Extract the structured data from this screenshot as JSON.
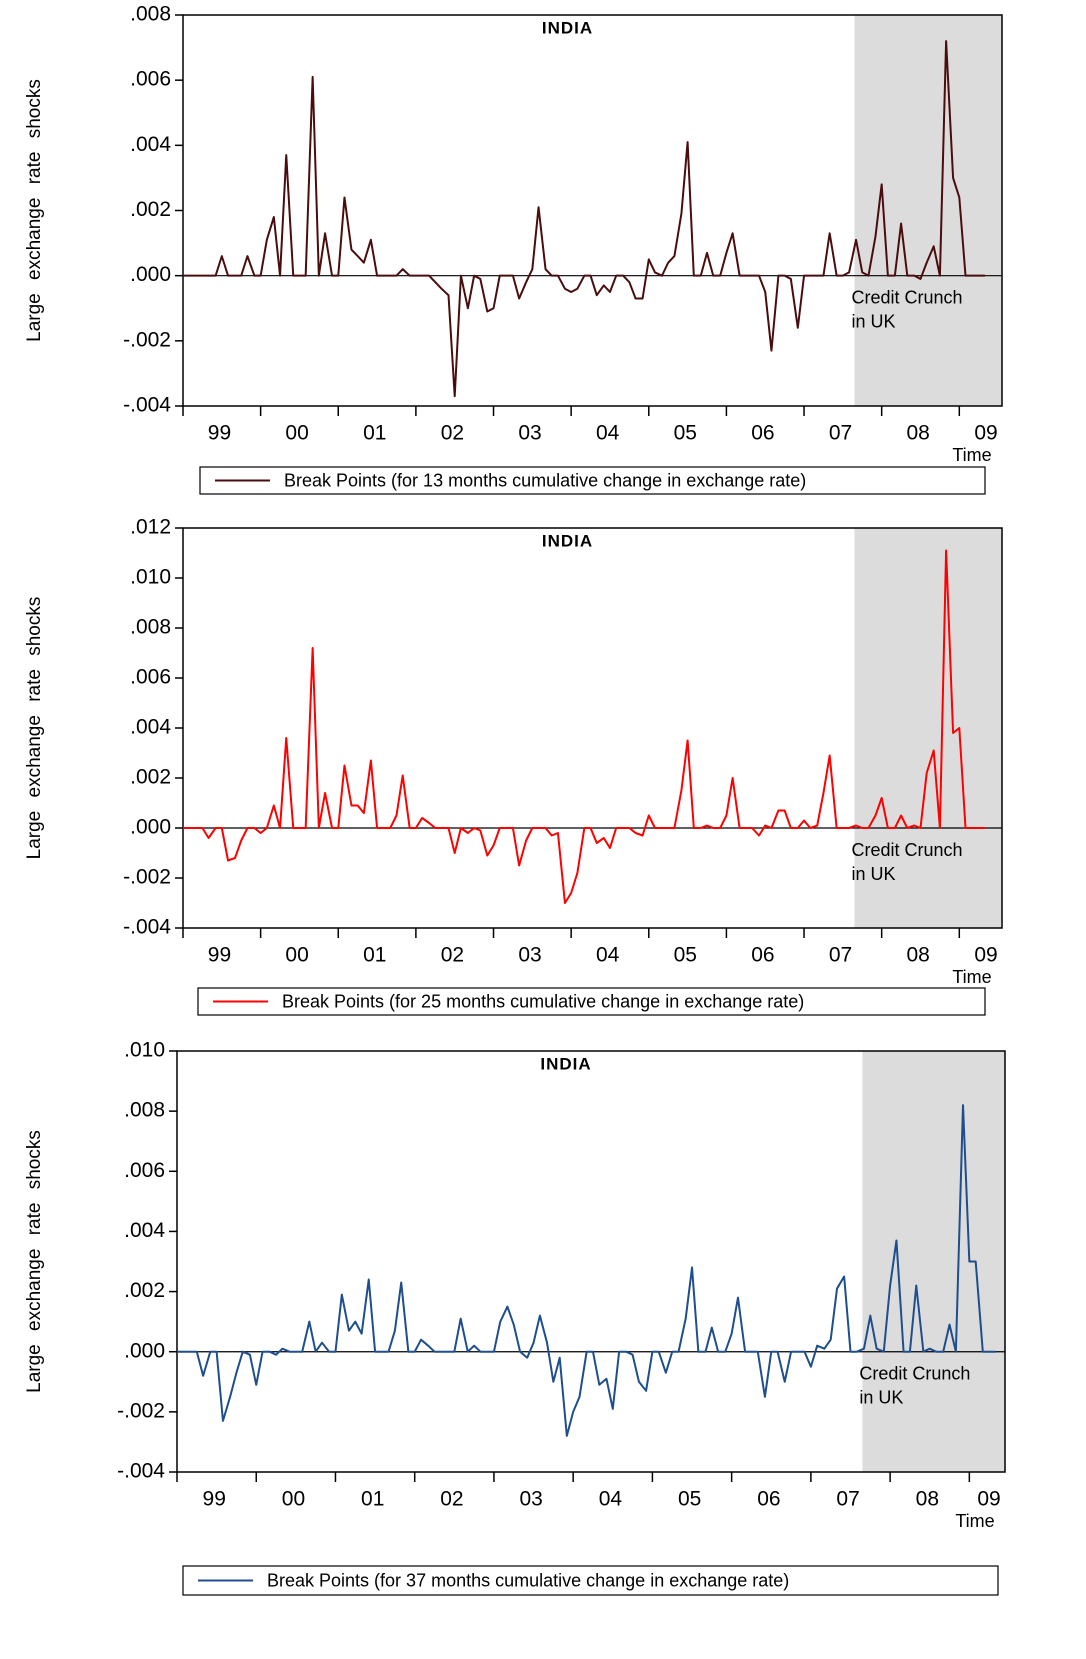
{
  "chart_data": [
    {
      "type": "line",
      "title": "INDIA",
      "y_label": "Large exchange rate shocks",
      "x_label": "Time",
      "annotation": [
        "Credit Crunch",
        "in UK"
      ],
      "shaded_xrange": [
        2007.65,
        2009.55
      ],
      "shade_color": "#dcdcdc",
      "grid": false,
      "legend": "bottom",
      "xlim": [
        1999,
        2009.55
      ],
      "ylim": [
        -0.004,
        0.008
      ],
      "xticks": [
        {
          "value": 1999,
          "label": "99"
        },
        {
          "value": 2000,
          "label": "00"
        },
        {
          "value": 2001,
          "label": "01"
        },
        {
          "value": 2002,
          "label": "02"
        },
        {
          "value": 2003,
          "label": "03"
        },
        {
          "value": 2004,
          "label": "04"
        },
        {
          "value": 2005,
          "label": "05"
        },
        {
          "value": 2006,
          "label": "06"
        },
        {
          "value": 2007,
          "label": "07"
        },
        {
          "value": 2008,
          "label": "08"
        },
        {
          "value": 2009,
          "label": "09"
        }
      ],
      "yticks": [
        {
          "value": -0.004,
          "label": "-.004"
        },
        {
          "value": -0.002,
          "label": "-.002"
        },
        {
          "value": 0,
          "label": ".000"
        },
        {
          "value": 0.002,
          "label": ".002"
        },
        {
          "value": 0.004,
          "label": ".004"
        },
        {
          "value": 0.006,
          "label": ".006"
        },
        {
          "value": 0.008,
          "label": ".008"
        }
      ],
      "x": [
        1999.0,
        1999.08,
        1999.17,
        1999.25,
        1999.33,
        1999.42,
        1999.5,
        1999.58,
        1999.67,
        1999.75,
        1999.83,
        1999.92,
        2000.0,
        2000.08,
        2000.17,
        2000.25,
        2000.33,
        2000.42,
        2000.5,
        2000.58,
        2000.67,
        2000.75,
        2000.83,
        2000.92,
        2001.0,
        2001.08,
        2001.17,
        2001.25,
        2001.33,
        2001.42,
        2001.5,
        2001.58,
        2001.67,
        2001.75,
        2001.83,
        2001.92,
        2002.0,
        2002.08,
        2002.17,
        2002.25,
        2002.33,
        2002.42,
        2002.5,
        2002.58,
        2002.67,
        2002.75,
        2002.83,
        2002.92,
        2003.0,
        2003.08,
        2003.17,
        2003.25,
        2003.33,
        2003.42,
        2003.5,
        2003.58,
        2003.67,
        2003.75,
        2003.83,
        2003.92,
        2004.0,
        2004.08,
        2004.17,
        2004.25,
        2004.33,
        2004.42,
        2004.5,
        2004.58,
        2004.67,
        2004.75,
        2004.83,
        2004.92,
        2005.0,
        2005.08,
        2005.17,
        2005.25,
        2005.33,
        2005.42,
        2005.5,
        2005.58,
        2005.67,
        2005.75,
        2005.83,
        2005.92,
        2006.0,
        2006.08,
        2006.17,
        2006.25,
        2006.33,
        2006.42,
        2006.5,
        2006.58,
        2006.67,
        2006.75,
        2006.83,
        2006.92,
        2007.0,
        2007.08,
        2007.17,
        2007.25,
        2007.33,
        2007.42,
        2007.5,
        2007.58,
        2007.67,
        2007.75,
        2007.83,
        2007.92,
        2008.0,
        2008.08,
        2008.17,
        2008.25,
        2008.33,
        2008.42,
        2008.5,
        2008.58,
        2008.67,
        2008.75,
        2008.83,
        2008.92,
        2009.0,
        2009.08,
        2009.17,
        2009.25,
        2009.33
      ],
      "series": [
        {
          "name": "Break Points (for 13 months cumulative change in exchange rate)",
          "color": "#4a0d0d",
          "values": [
            0,
            0,
            0,
            0,
            0,
            0,
            0.0006,
            0,
            0,
            0,
            0.0006,
            0,
            0,
            0.0011,
            0.0018,
            0,
            0.0037,
            0,
            0,
            0,
            0.0061,
            0,
            0.0013,
            0,
            0,
            0.0024,
            0.0008,
            0.0006,
            0.0004,
            0.0011,
            0,
            0,
            0,
            0,
            0.0002,
            0,
            0,
            0,
            0,
            -0.0002,
            -0.0004,
            -0.0006,
            -0.0037,
            0,
            -0.001,
            0,
            -0.0001,
            -0.0011,
            -0.001,
            0,
            0,
            0,
            -0.0007,
            -0.0002,
            0.0002,
            0.0021,
            0.0002,
            0,
            0,
            -0.0004,
            -0.0005,
            -0.0004,
            0,
            0,
            -0.0006,
            -0.0003,
            -0.0005,
            0,
            0,
            -0.0002,
            -0.0007,
            -0.0007,
            0.0005,
            0.0001,
            0,
            0.0004,
            0.0006,
            0.0019,
            0.0041,
            0,
            0,
            0.0007,
            0,
            0,
            0.0007,
            0.0013,
            0,
            0,
            0,
            0,
            -0.0005,
            -0.0023,
            0,
            0,
            -0.0001,
            -0.0016,
            0,
            0,
            0,
            0,
            0.0013,
            0,
            0,
            0.0001,
            0.0011,
            0.0001,
            0,
            0.0012,
            0.0028,
            0,
            0,
            0.0016,
            0,
            0,
            -0.0001,
            0.0004,
            0.0009,
            0,
            0.0072,
            0.003,
            0.0024,
            0,
            0,
            0,
            0
          ]
        }
      ]
    },
    {
      "type": "line",
      "title": "INDIA",
      "y_label": "Large exchange rate shocks",
      "x_label": "Time",
      "annotation": [
        "Credit Crunch",
        "in UK"
      ],
      "shaded_xrange": [
        2007.65,
        2009.55
      ],
      "shade_color": "#dcdcdc",
      "grid": false,
      "legend": "bottom",
      "xlim": [
        1999,
        2009.55
      ],
      "ylim": [
        -0.004,
        0.012
      ],
      "xticks": [
        {
          "value": 1999,
          "label": "99"
        },
        {
          "value": 2000,
          "label": "00"
        },
        {
          "value": 2001,
          "label": "01"
        },
        {
          "value": 2002,
          "label": "02"
        },
        {
          "value": 2003,
          "label": "03"
        },
        {
          "value": 2004,
          "label": "04"
        },
        {
          "value": 2005,
          "label": "05"
        },
        {
          "value": 2006,
          "label": "06"
        },
        {
          "value": 2007,
          "label": "07"
        },
        {
          "value": 2008,
          "label": "08"
        },
        {
          "value": 2009,
          "label": "09"
        }
      ],
      "yticks": [
        {
          "value": -0.004,
          "label": "-.004"
        },
        {
          "value": -0.002,
          "label": "-.002"
        },
        {
          "value": 0,
          "label": ".000"
        },
        {
          "value": 0.002,
          "label": ".002"
        },
        {
          "value": 0.004,
          "label": ".004"
        },
        {
          "value": 0.006,
          "label": ".006"
        },
        {
          "value": 0.008,
          "label": ".008"
        },
        {
          "value": 0.01,
          "label": ".010"
        },
        {
          "value": 0.012,
          "label": ".012"
        }
      ],
      "x": [
        1999.0,
        1999.08,
        1999.17,
        1999.25,
        1999.33,
        1999.42,
        1999.5,
        1999.58,
        1999.67,
        1999.75,
        1999.83,
        1999.92,
        2000.0,
        2000.08,
        2000.17,
        2000.25,
        2000.33,
        2000.42,
        2000.5,
        2000.58,
        2000.67,
        2000.75,
        2000.83,
        2000.92,
        2001.0,
        2001.08,
        2001.17,
        2001.25,
        2001.33,
        2001.42,
        2001.5,
        2001.58,
        2001.67,
        2001.75,
        2001.83,
        2001.92,
        2002.0,
        2002.08,
        2002.17,
        2002.25,
        2002.33,
        2002.42,
        2002.5,
        2002.58,
        2002.67,
        2002.75,
        2002.83,
        2002.92,
        2003.0,
        2003.08,
        2003.17,
        2003.25,
        2003.33,
        2003.42,
        2003.5,
        2003.58,
        2003.67,
        2003.75,
        2003.83,
        2003.92,
        2004.0,
        2004.08,
        2004.17,
        2004.25,
        2004.33,
        2004.42,
        2004.5,
        2004.58,
        2004.67,
        2004.75,
        2004.83,
        2004.92,
        2005.0,
        2005.08,
        2005.17,
        2005.25,
        2005.33,
        2005.42,
        2005.5,
        2005.58,
        2005.67,
        2005.75,
        2005.83,
        2005.92,
        2006.0,
        2006.08,
        2006.17,
        2006.25,
        2006.33,
        2006.42,
        2006.5,
        2006.58,
        2006.67,
        2006.75,
        2006.83,
        2006.92,
        2007.0,
        2007.08,
        2007.17,
        2007.25,
        2007.33,
        2007.42,
        2007.5,
        2007.58,
        2007.67,
        2007.75,
        2007.83,
        2007.92,
        2008.0,
        2008.08,
        2008.17,
        2008.25,
        2008.33,
        2008.42,
        2008.5,
        2008.58,
        2008.67,
        2008.75,
        2008.83,
        2008.92,
        2009.0,
        2009.08,
        2009.17,
        2009.25,
        2009.33
      ],
      "series": [
        {
          "name": "Break Points (for 25 months cumulative change in exchange rate)",
          "color": "#ff0000",
          "values": [
            0,
            0,
            0,
            0,
            -0.0004,
            0,
            0,
            -0.0013,
            -0.0012,
            -0.0005,
            0,
            0,
            -0.0002,
            0,
            0.0009,
            0,
            0.0036,
            0,
            0,
            0,
            0.0072,
            0,
            0.0014,
            0,
            0,
            0.0025,
            0.0009,
            0.0009,
            0.0006,
            0.0027,
            0,
            0,
            0,
            0.0005,
            0.0021,
            0,
            0,
            0.0004,
            0.0002,
            0,
            0,
            0,
            -0.001,
            0,
            -0.0002,
            0,
            -0.0001,
            -0.0011,
            -0.0007,
            0,
            0,
            0,
            -0.0015,
            -0.0005,
            0,
            0,
            0,
            -0.0003,
            -0.0002,
            -0.003,
            -0.0026,
            -0.0018,
            0,
            0,
            -0.0006,
            -0.0004,
            -0.0008,
            0,
            0,
            0,
            -0.0002,
            -0.0003,
            0.0005,
            0,
            0,
            0,
            0,
            0.0015,
            0.0035,
            0,
            0,
            0.0001,
            0,
            0,
            0.0005,
            0.002,
            0,
            0,
            0,
            -0.0003,
            0.0001,
            0,
            0.0007,
            0.0007,
            0,
            0,
            0.0003,
            0,
            0.0001,
            0.0014,
            0.0029,
            0,
            0,
            0,
            0.0001,
            0,
            0,
            0.0005,
            0.0012,
            0,
            0,
            0.0005,
            0,
            0.0001,
            0,
            0.0022,
            0.0031,
            0,
            0.0111,
            0.0038,
            0.004,
            0,
            0,
            0,
            0
          ]
        }
      ]
    },
    {
      "type": "line",
      "title": "INDIA",
      "y_label": "Large exchange rate shocks",
      "x_label": "Time",
      "annotation": [
        "Credit Crunch",
        "in UK"
      ],
      "shaded_xrange": [
        2007.65,
        2009.45
      ],
      "shade_color": "#dcdcdc",
      "grid": false,
      "legend": "bottom",
      "xlim": [
        1999,
        2009.45
      ],
      "ylim": [
        -0.004,
        0.01
      ],
      "xticks": [
        {
          "value": 1999,
          "label": "99"
        },
        {
          "value": 2000,
          "label": "00"
        },
        {
          "value": 2001,
          "label": "01"
        },
        {
          "value": 2002,
          "label": "02"
        },
        {
          "value": 2003,
          "label": "03"
        },
        {
          "value": 2004,
          "label": "04"
        },
        {
          "value": 2005,
          "label": "05"
        },
        {
          "value": 2006,
          "label": "06"
        },
        {
          "value": 2007,
          "label": "07"
        },
        {
          "value": 2008,
          "label": "08"
        },
        {
          "value": 2009,
          "label": "09"
        }
      ],
      "yticks": [
        {
          "value": -0.004,
          "label": "-.004"
        },
        {
          "value": -0.002,
          "label": "-.002"
        },
        {
          "value": 0,
          "label": ".000"
        },
        {
          "value": 0.002,
          "label": ".002"
        },
        {
          "value": 0.004,
          "label": ".004"
        },
        {
          "value": 0.006,
          "label": ".006"
        },
        {
          "value": 0.008,
          "label": ".008"
        },
        {
          "value": 0.01,
          "label": ".010"
        }
      ],
      "x": [
        1999.0,
        1999.08,
        1999.17,
        1999.25,
        1999.33,
        1999.42,
        1999.5,
        1999.58,
        1999.67,
        1999.75,
        1999.83,
        1999.92,
        2000.0,
        2000.08,
        2000.17,
        2000.25,
        2000.33,
        2000.42,
        2000.5,
        2000.58,
        2000.67,
        2000.75,
        2000.83,
        2000.92,
        2001.0,
        2001.08,
        2001.17,
        2001.25,
        2001.33,
        2001.42,
        2001.5,
        2001.58,
        2001.67,
        2001.75,
        2001.83,
        2001.92,
        2002.0,
        2002.08,
        2002.17,
        2002.25,
        2002.33,
        2002.42,
        2002.5,
        2002.58,
        2002.67,
        2002.75,
        2002.83,
        2002.92,
        2003.0,
        2003.08,
        2003.17,
        2003.25,
        2003.33,
        2003.42,
        2003.5,
        2003.58,
        2003.67,
        2003.75,
        2003.83,
        2003.92,
        2004.0,
        2004.08,
        2004.17,
        2004.25,
        2004.33,
        2004.42,
        2004.5,
        2004.58,
        2004.67,
        2004.75,
        2004.83,
        2004.92,
        2005.0,
        2005.08,
        2005.17,
        2005.25,
        2005.33,
        2005.42,
        2005.5,
        2005.58,
        2005.67,
        2005.75,
        2005.83,
        2005.92,
        2006.0,
        2006.08,
        2006.17,
        2006.25,
        2006.33,
        2006.42,
        2006.5,
        2006.58,
        2006.67,
        2006.75,
        2006.83,
        2006.92,
        2007.0,
        2007.08,
        2007.17,
        2007.25,
        2007.33,
        2007.42,
        2007.5,
        2007.58,
        2007.67,
        2007.75,
        2007.83,
        2007.92,
        2008.0,
        2008.08,
        2008.17,
        2008.25,
        2008.33,
        2008.42,
        2008.5,
        2008.58,
        2008.67,
        2008.75,
        2008.83,
        2008.92,
        2009.0,
        2009.08,
        2009.17,
        2009.25,
        2009.33
      ],
      "series": [
        {
          "name": "Break Points (for 37 months cumulative change in exchange rate)",
          "color": "#1f4e8c",
          "values": [
            0,
            0,
            0,
            0,
            -0.0008,
            0,
            0,
            -0.0023,
            -0.0015,
            -0.0007,
            0,
            -0.0001,
            -0.0011,
            0,
            0,
            -0.0001,
            0.0001,
            0,
            0,
            0,
            0.001,
            0,
            0.0003,
            0,
            0,
            0.0019,
            0.0007,
            0.001,
            0.0006,
            0.0024,
            0,
            0,
            0,
            0.0007,
            0.0023,
            0,
            0,
            0.0004,
            0.0002,
            0,
            0,
            0,
            0,
            0.0011,
            0,
            0.0002,
            0,
            0,
            0,
            0.001,
            0.0015,
            0.0009,
            0,
            -0.0002,
            0.0003,
            0.0012,
            0.0003,
            -0.001,
            -0.0002,
            -0.0028,
            -0.002,
            -0.0015,
            0,
            0,
            -0.0011,
            -0.0009,
            -0.0019,
            0,
            0,
            -0.0001,
            -0.001,
            -0.0013,
            0,
            0,
            -0.0007,
            0,
            0,
            0.0011,
            0.0028,
            0,
            0,
            0.0008,
            0,
            0,
            0.0006,
            0.0018,
            0,
            0,
            0,
            -0.0015,
            0,
            0,
            -0.001,
            0,
            0,
            0,
            -0.0005,
            0.0002,
            0.0001,
            0.0004,
            0.0021,
            0.0025,
            0,
            0,
            0.0001,
            0.0012,
            0.0001,
            0,
            0.0022,
            0.0037,
            0,
            0,
            0.0022,
            0,
            0.0001,
            0,
            0,
            0.0009,
            0,
            0.0082,
            0.003,
            0.003,
            0,
            0,
            0
          ]
        }
      ]
    }
  ]
}
